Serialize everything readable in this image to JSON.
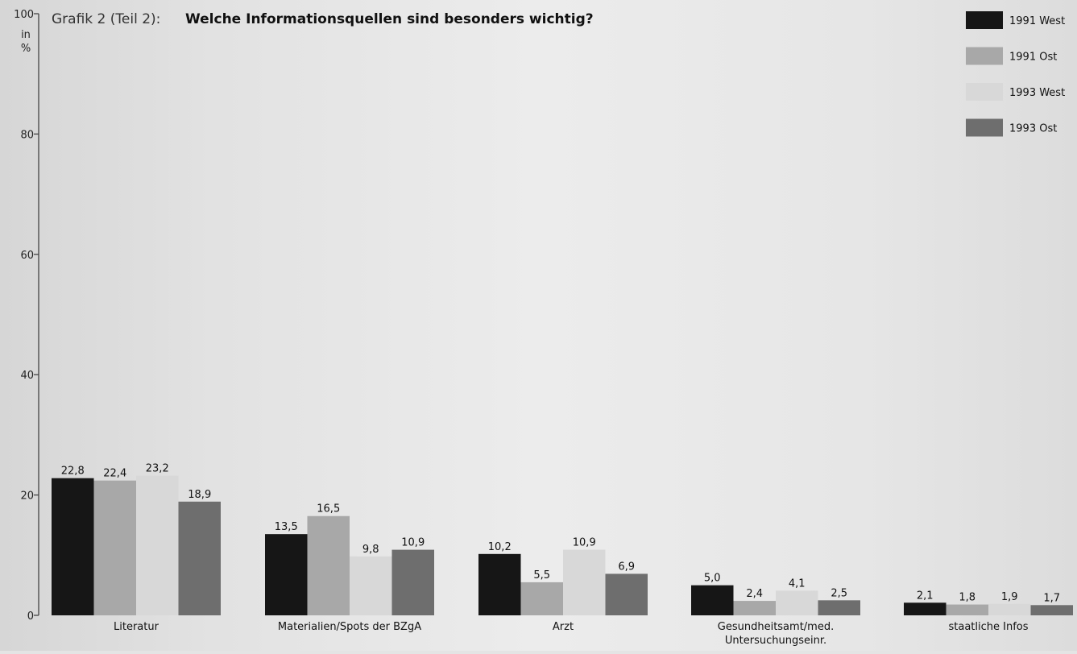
{
  "title_prefix": "Grafik 2 (Teil 2):",
  "title": "Welche Informationsquellen sind besonders wichtig?",
  "colors": {
    "1991 West": "#161616",
    "1991 Ost": "#a8a8a8",
    "1993 West": "#d8d8d8",
    "1993 Ost": "#6e6e6e"
  },
  "chart_data": {
    "type": "bar",
    "title": "Welche Informationsquellen sind besonders wichtig?",
    "ylabel": "in %",
    "ylim": [
      0,
      100
    ],
    "yticks": [
      0,
      20,
      40,
      60,
      80,
      100
    ],
    "grid": false,
    "legend_position": "top-right",
    "categories": [
      "Literatur",
      "Materialien/Spots der BZgA",
      "Arzt",
      "Gesundheitsamt/med. Untersuchungseinr.",
      "staatliche Infos"
    ],
    "series": [
      {
        "name": "1991 West",
        "values": [
          22.8,
          13.5,
          10.2,
          5.0,
          2.1
        ],
        "labels": [
          "22,8",
          "13,5",
          "10,2",
          "5,0",
          "2,1"
        ]
      },
      {
        "name": "1991 Ost",
        "values": [
          22.4,
          16.5,
          5.5,
          2.4,
          1.8
        ],
        "labels": [
          "22,4",
          "16,5",
          "5,5",
          "2,4",
          "1,8"
        ]
      },
      {
        "name": "1993 West",
        "values": [
          23.2,
          9.8,
          10.9,
          4.1,
          1.9
        ],
        "labels": [
          "23,2",
          "9,8",
          "10,9",
          "4,1",
          "1,9"
        ]
      },
      {
        "name": "1993 Ost",
        "values": [
          18.9,
          10.9,
          6.9,
          2.5,
          1.7
        ],
        "labels": [
          "18,9",
          "10,9",
          "6,9",
          "2,5",
          "1,7"
        ]
      }
    ]
  }
}
